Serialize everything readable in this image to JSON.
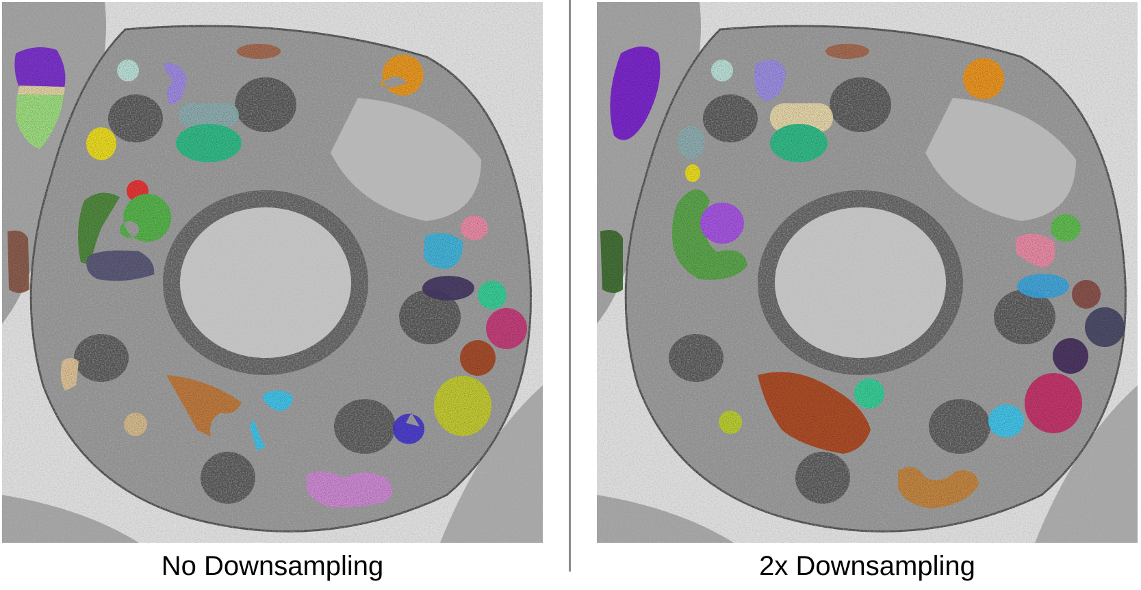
{
  "panels": [
    {
      "id": "left",
      "caption": "No Downsampling",
      "segments": [
        {
          "name": "purple-top-left",
          "color": "#7a2fd0"
        },
        {
          "name": "light-green-top-left",
          "color": "#9fe37f"
        },
        {
          "name": "beige-band",
          "color": "#e6d7a6"
        },
        {
          "name": "brown-left-edge",
          "color": "#8a5a4a"
        },
        {
          "name": "yellow",
          "color": "#f2e21c"
        },
        {
          "name": "pale-teal",
          "color": "#bfe6dd"
        },
        {
          "name": "lavender",
          "color": "#a18be8"
        },
        {
          "name": "slate-teal",
          "color": "#8fb0b3"
        },
        {
          "name": "teal-green",
          "color": "#2fbf88"
        },
        {
          "name": "brown-top",
          "color": "#a86a50"
        },
        {
          "name": "orange-top",
          "color": "#f09a1e"
        },
        {
          "name": "red-small",
          "color": "#ee3333"
        },
        {
          "name": "green-ring",
          "color": "#55b84a"
        },
        {
          "name": "olive-green-arc",
          "color": "#4e8a3a"
        },
        {
          "name": "slate-purple",
          "color": "#5a5878"
        },
        {
          "name": "pink-small",
          "color": "#f08ca8"
        },
        {
          "name": "sky-blue",
          "color": "#3fb8e0"
        },
        {
          "name": "dark-purple",
          "color": "#4a3a66"
        },
        {
          "name": "mint",
          "color": "#36d39a"
        },
        {
          "name": "magenta",
          "color": "#c83a7a"
        },
        {
          "name": "rust",
          "color": "#a84a28"
        },
        {
          "name": "lime-olive",
          "color": "#c7cf2f"
        },
        {
          "name": "indigo-small",
          "color": "#4a3ad0"
        },
        {
          "name": "tan-left",
          "color": "#e6c79a"
        },
        {
          "name": "tan-small",
          "color": "#dcc08e"
        },
        {
          "name": "copper-brown",
          "color": "#c47a3a"
        },
        {
          "name": "cyan-small",
          "color": "#3fc8f0"
        },
        {
          "name": "orchid-bottom",
          "color": "#d28ad8"
        }
      ]
    },
    {
      "id": "right",
      "caption": "2x Downsampling",
      "segments": [
        {
          "name": "violet-large",
          "color": "#7a22d0"
        },
        {
          "name": "pale-teal",
          "color": "#bfe6dd"
        },
        {
          "name": "brown-top",
          "color": "#a86a50"
        },
        {
          "name": "lavender",
          "color": "#9d8fe8"
        },
        {
          "name": "beige",
          "color": "#ecdcac"
        },
        {
          "name": "teal-green",
          "color": "#2fbf88"
        },
        {
          "name": "orange-top",
          "color": "#f2961e"
        },
        {
          "name": "slate-teal",
          "color": "#8fb0b3"
        },
        {
          "name": "yellow-small",
          "color": "#f2e21c"
        },
        {
          "name": "green-arc",
          "color": "#5aa84a"
        },
        {
          "name": "violet-medium",
          "color": "#a852e8"
        },
        {
          "name": "dark-green-left",
          "color": "#3f6e32"
        },
        {
          "name": "green-small",
          "color": "#5ec04e"
        },
        {
          "name": "pink",
          "color": "#f08ca8"
        },
        {
          "name": "sky-blue",
          "color": "#3fa8e0"
        },
        {
          "name": "brown-small",
          "color": "#8a5048"
        },
        {
          "name": "slate-purple",
          "color": "#4a4868"
        },
        {
          "name": "dark-purple",
          "color": "#4a3060"
        },
        {
          "name": "mint",
          "color": "#36d39a"
        },
        {
          "name": "magenta",
          "color": "#c8306a"
        },
        {
          "name": "cyan",
          "color": "#3fc8f0"
        },
        {
          "name": "lime-small",
          "color": "#bfd22f"
        },
        {
          "name": "rust-large",
          "color": "#b04a22"
        },
        {
          "name": "copper-bottom",
          "color": "#c8863e"
        }
      ]
    }
  ]
}
